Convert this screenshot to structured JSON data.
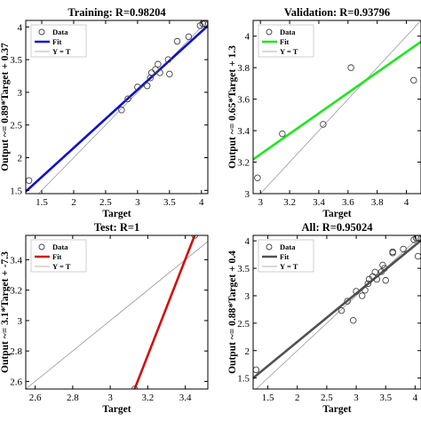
{
  "chart_data": [
    {
      "type": "scatter",
      "title": "Training: R=0.98204",
      "xlabel": "Target",
      "ylabel": "Output ~= 0.89*Target + 0.37",
      "xlim": [
        1.25,
        4.1
      ],
      "ylim": [
        1.45,
        4.1
      ],
      "xticks": [
        1.5,
        2,
        2.5,
        3,
        3.5,
        4
      ],
      "yticks": [
        1.5,
        2,
        2.5,
        3,
        3.5,
        4
      ],
      "xtick_labels": [
        "1.5",
        "2",
        "2.5",
        "3",
        "3.5",
        "4"
      ],
      "ytick_labels": [
        "1.5",
        "2",
        "2.5",
        "3",
        "3.5",
        "4"
      ],
      "legend": [
        "Data",
        "Fit",
        "Y = T"
      ],
      "legend_position": "top-left",
      "fit": {
        "slope": 0.89,
        "intercept": 0.37,
        "color": "#1010c8"
      },
      "points": [
        [
          1.3,
          1.65
        ],
        [
          2.75,
          2.73
        ],
        [
          2.85,
          2.9
        ],
        [
          3.0,
          3.08
        ],
        [
          3.15,
          3.1
        ],
        [
          3.2,
          3.22
        ],
        [
          3.22,
          3.3
        ],
        [
          3.28,
          3.35
        ],
        [
          3.32,
          3.43
        ],
        [
          3.35,
          3.3
        ],
        [
          3.5,
          3.28
        ],
        [
          3.48,
          3.5
        ],
        [
          3.62,
          3.78
        ],
        [
          3.8,
          3.85
        ],
        [
          3.98,
          4.02
        ],
        [
          4.02,
          4.05
        ],
        [
          4.05,
          4.05
        ]
      ]
    },
    {
      "type": "scatter",
      "title": "Validation: R=0.93796",
      "xlabel": "Target",
      "ylabel": "Output ~= 0.65*Target + 1.3",
      "xlim": [
        2.95,
        4.1
      ],
      "ylim": [
        3.0,
        4.1
      ],
      "xticks": [
        3,
        3.2,
        3.4,
        3.6,
        3.8,
        4
      ],
      "yticks": [
        3,
        3.2,
        3.4,
        3.6,
        3.8,
        4
      ],
      "xtick_labels": [
        "3",
        "3.2",
        "3.4",
        "3.6",
        "3.8",
        "4"
      ],
      "ytick_labels": [
        "3",
        "3.2",
        "3.4",
        "3.6",
        "3.8",
        "4"
      ],
      "legend": [
        "Data",
        "Fit",
        "Y = T"
      ],
      "legend_position": "top-left",
      "fit": {
        "slope": 0.65,
        "intercept": 1.3,
        "color": "#1ee61e"
      },
      "points": [
        [
          2.98,
          3.1
        ],
        [
          3.15,
          3.38
        ],
        [
          3.43,
          3.44
        ],
        [
          3.62,
          3.8
        ],
        [
          4.05,
          3.72
        ]
      ]
    },
    {
      "type": "scatter",
      "title": "Test: R=1",
      "xlabel": "Target",
      "ylabel": "Output ~= 3.1*Target + -7.3",
      "xlim": [
        2.55,
        3.52
      ],
      "ylim": [
        2.55,
        3.56
      ],
      "xticks": [
        2.6,
        2.8,
        3,
        3.2,
        3.4
      ],
      "yticks": [
        2.6,
        2.8,
        3,
        3.2,
        3.4
      ],
      "xtick_labels": [
        "2.6",
        "2.8",
        "3",
        "3.2",
        "3.4"
      ],
      "ytick_labels": [
        "2.6",
        "2.8",
        "3",
        "3.2",
        "3.4"
      ],
      "legend": [
        "Data",
        "Fit",
        "Y = T"
      ],
      "legend_position": "top-left",
      "fit": {
        "x_range": [
          3.13,
          3.45
        ],
        "y_range": [
          2.55,
          3.56
        ],
        "color": "#d01010"
      },
      "points": [
        [
          3.13,
          2.55
        ],
        [
          3.45,
          3.56
        ]
      ]
    },
    {
      "type": "scatter",
      "title": "All: R=0.95024",
      "xlabel": "Target",
      "ylabel": "Output ~= 0.88*Target + 0.4",
      "xlim": [
        1.25,
        4.1
      ],
      "ylim": [
        1.3,
        4.1
      ],
      "xticks": [
        1.5,
        2,
        2.5,
        3,
        3.5,
        4
      ],
      "yticks": [
        1.5,
        2,
        2.5,
        3,
        3.5,
        4
      ],
      "xtick_labels": [
        "1.5",
        "2",
        "2.5",
        "3",
        "3.5",
        "4"
      ],
      "ytick_labels": [
        "1.5",
        "2",
        "2.5",
        "3",
        "3.5",
        "4"
      ],
      "legend": [
        "Data",
        "Fit",
        "Y = T"
      ],
      "legend_position": "top-left",
      "fit": {
        "slope": 0.88,
        "intercept": 0.4,
        "color": "#505050"
      },
      "points": [
        [
          1.3,
          1.65
        ],
        [
          2.75,
          2.73
        ],
        [
          2.85,
          2.9
        ],
        [
          2.95,
          2.55
        ],
        [
          3.0,
          3.08
        ],
        [
          3.1,
          3.0
        ],
        [
          3.15,
          3.1
        ],
        [
          3.2,
          3.22
        ],
        [
          3.22,
          3.3
        ],
        [
          3.28,
          3.35
        ],
        [
          3.32,
          3.43
        ],
        [
          3.35,
          3.3
        ],
        [
          3.43,
          3.44
        ],
        [
          3.45,
          3.56
        ],
        [
          3.5,
          3.28
        ],
        [
          3.48,
          3.5
        ],
        [
          3.62,
          3.78
        ],
        [
          3.62,
          3.8
        ],
        [
          3.8,
          3.85
        ],
        [
          3.98,
          4.02
        ],
        [
          4.02,
          4.05
        ],
        [
          4.05,
          4.05
        ],
        [
          4.05,
          3.72
        ]
      ]
    }
  ]
}
